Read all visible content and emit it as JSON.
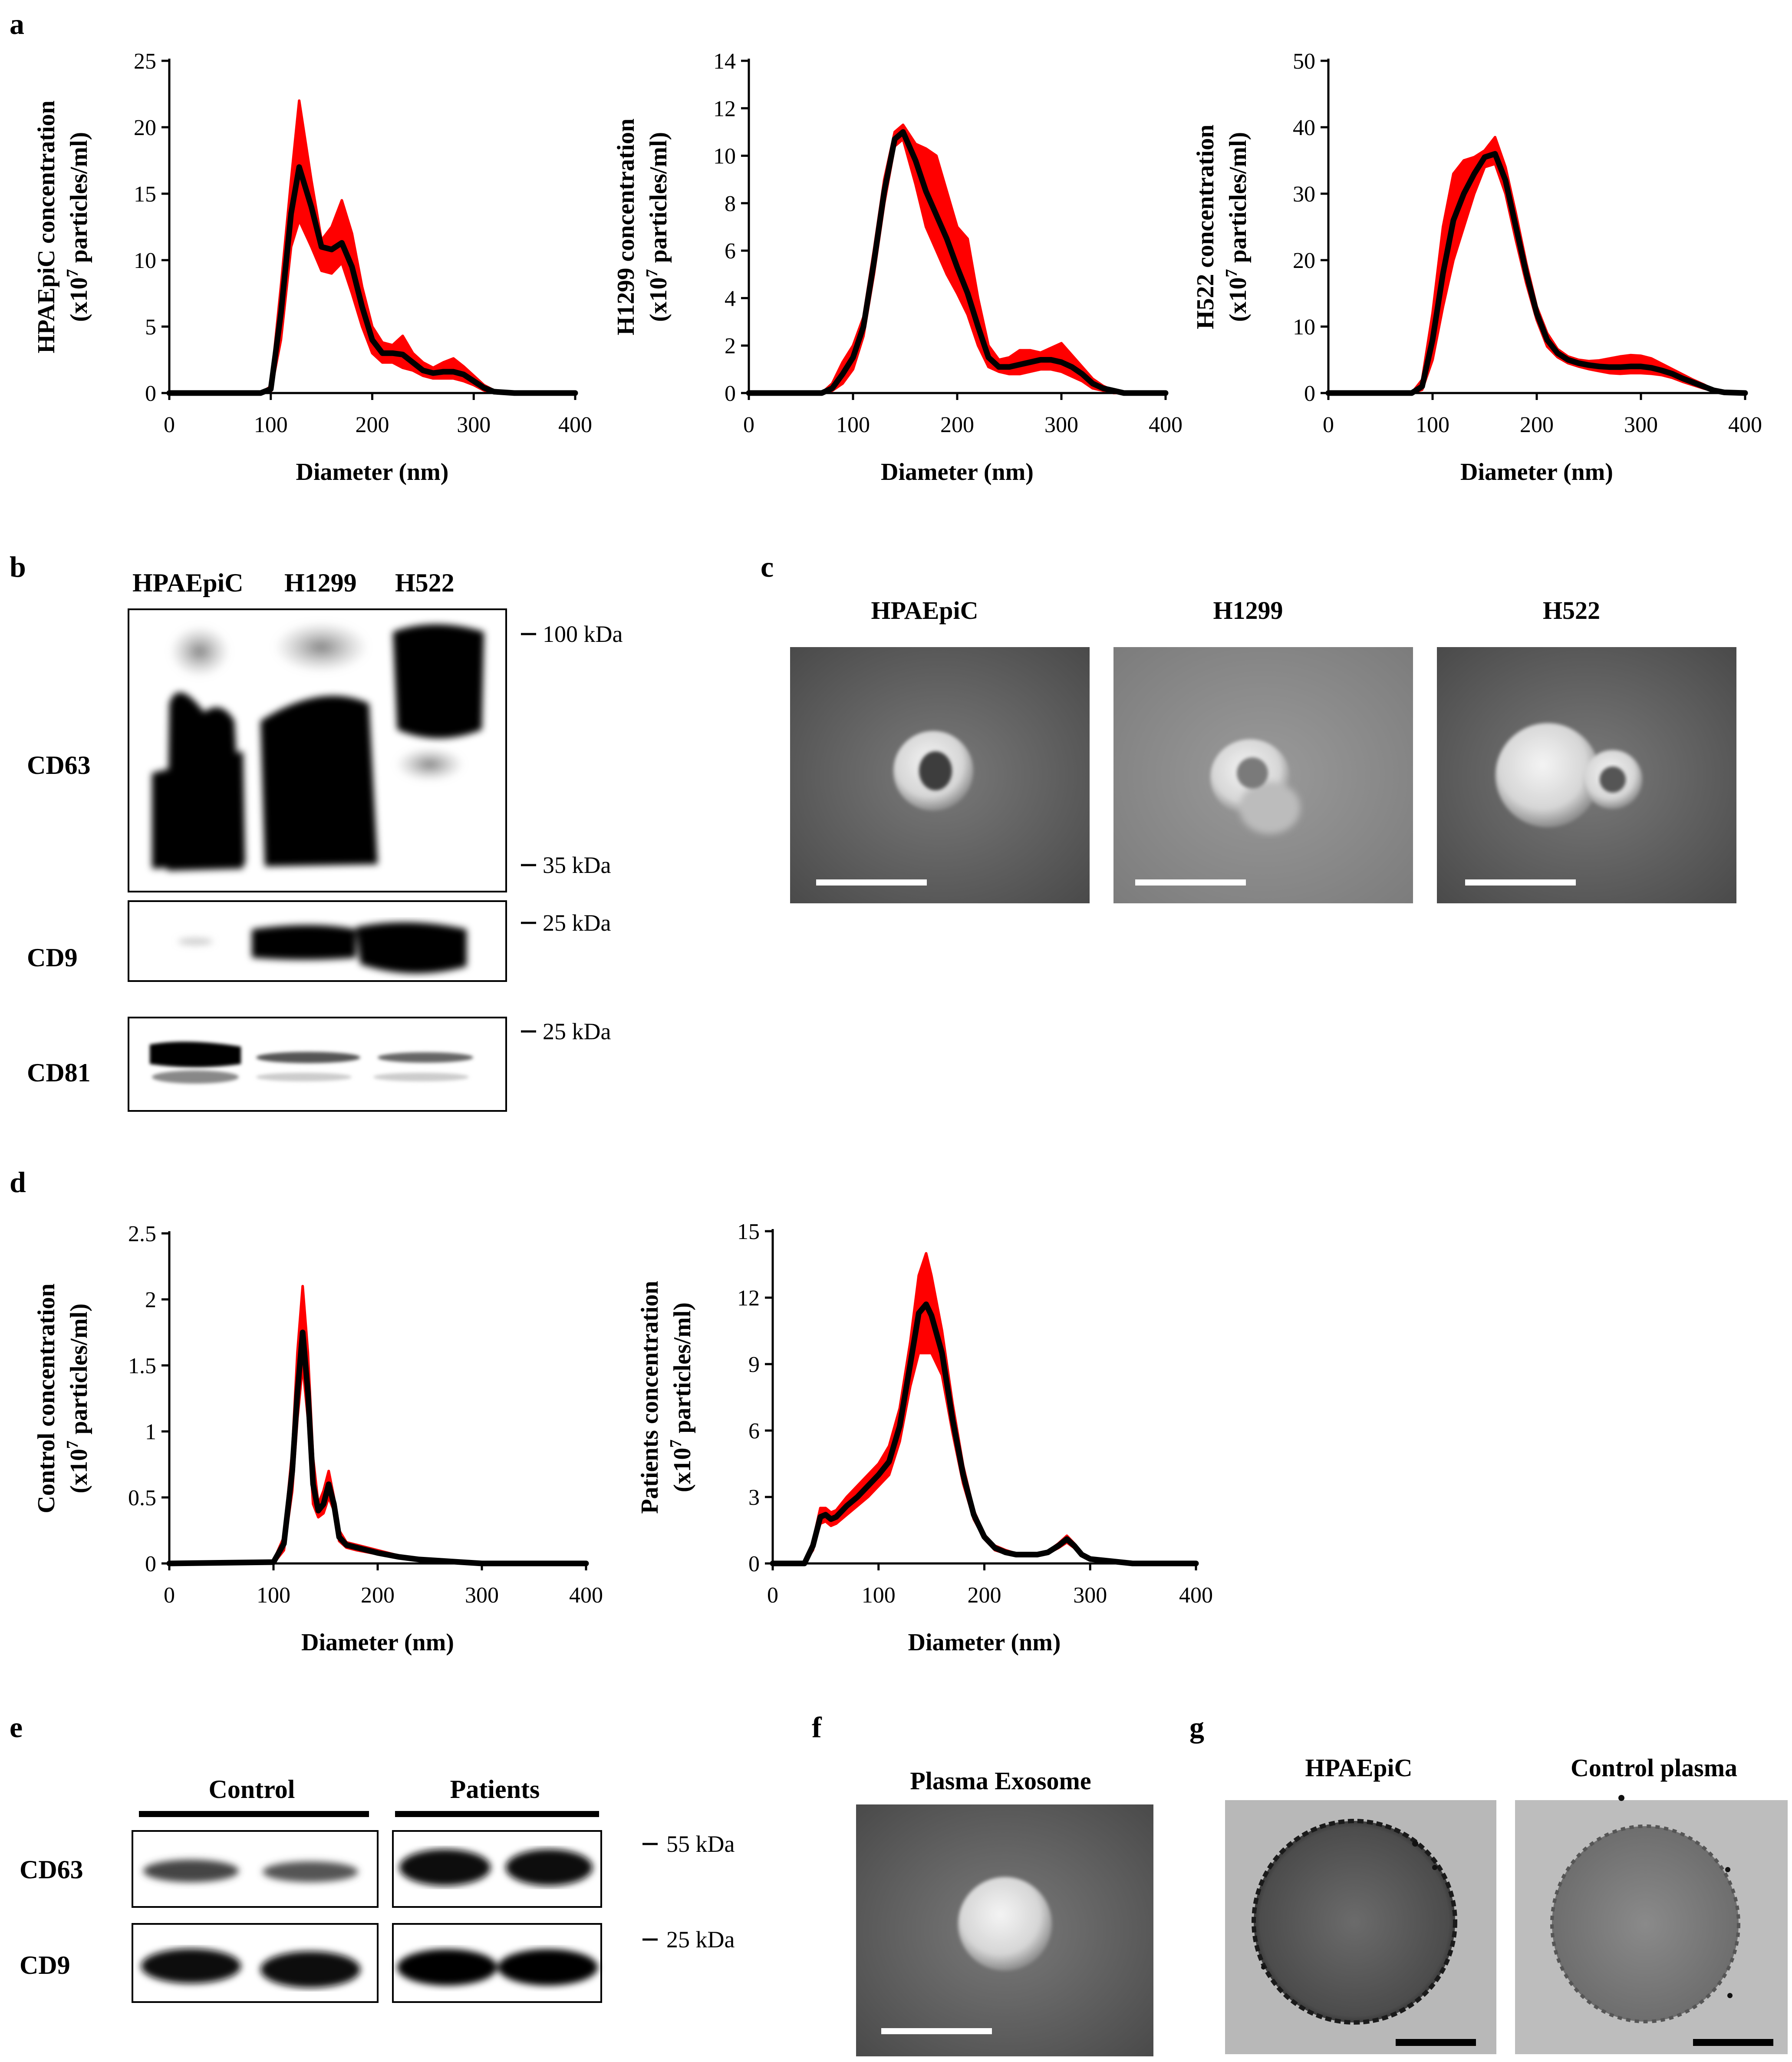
{
  "panels": {
    "a": "a",
    "b": "b",
    "c": "c",
    "d": "d",
    "e": "e",
    "f": "f",
    "g": "g"
  },
  "colors": {
    "band": "#ff0000",
    "line": "#000000"
  },
  "chart_data": [
    {
      "id": "a1",
      "type": "line",
      "panel": "a",
      "title": "",
      "ylabel": "HPAEpiC concentration",
      "ylabel2": "(x10",
      "ylabel_exp": "7",
      "ylabel3": " particles/ml)",
      "xlabel": "Diameter (nm)",
      "xlim": [
        0,
        400
      ],
      "ylim": [
        0,
        25
      ],
      "xticks": [
        "0",
        "100",
        "200",
        "300",
        "400"
      ],
      "yticks": [
        "0",
        "5",
        "10",
        "15",
        "20",
        "25"
      ],
      "x": [
        0,
        90,
        100,
        110,
        120,
        128,
        140,
        150,
        160,
        170,
        180,
        190,
        200,
        210,
        220,
        230,
        240,
        250,
        260,
        270,
        280,
        290,
        300,
        310,
        320,
        340,
        400
      ],
      "mean": [
        0,
        0,
        0.3,
        6.0,
        13.5,
        17.0,
        14.0,
        11.0,
        10.8,
        11.3,
        9.5,
        6.5,
        4.0,
        3.0,
        3.0,
        2.9,
        2.3,
        1.7,
        1.5,
        1.6,
        1.6,
        1.4,
        0.9,
        0.4,
        0.1,
        0,
        0
      ],
      "upper": [
        0,
        0,
        0.5,
        8.0,
        16.0,
        22.0,
        16.0,
        11.5,
        12.5,
        14.5,
        12.0,
        8.0,
        5.0,
        3.8,
        3.6,
        4.3,
        3.0,
        2.3,
        1.9,
        2.3,
        2.6,
        2.0,
        1.3,
        0.6,
        0.2,
        0,
        0
      ],
      "lower": [
        0,
        0,
        0.1,
        4.0,
        11.0,
        13.0,
        11.0,
        9.2,
        9.0,
        9.8,
        7.5,
        5.0,
        3.0,
        2.3,
        2.3,
        1.9,
        1.7,
        1.3,
        1.1,
        1.1,
        1.1,
        0.9,
        0.6,
        0.2,
        0,
        0,
        0
      ]
    },
    {
      "id": "a2",
      "type": "line",
      "panel": "a",
      "ylabel": "H1299 concentration",
      "ylabel2": "(x10",
      "ylabel_exp": "7",
      "ylabel3": " particles/ml)",
      "xlabel": "Diameter (nm)",
      "xlim": [
        0,
        400
      ],
      "ylim": [
        0,
        14
      ],
      "xticks": [
        "0",
        "100",
        "200",
        "300",
        "400"
      ],
      "yticks": [
        "0",
        "2",
        "4",
        "6",
        "8",
        "10",
        "12",
        "14"
      ],
      "x": [
        0,
        70,
        80,
        90,
        100,
        110,
        120,
        130,
        140,
        148,
        160,
        170,
        180,
        190,
        200,
        210,
        220,
        230,
        240,
        250,
        260,
        270,
        280,
        290,
        300,
        310,
        320,
        330,
        340,
        350,
        360,
        400
      ],
      "mean": [
        0,
        0,
        0.2,
        0.8,
        1.5,
        2.8,
        5.5,
        8.5,
        10.7,
        11.0,
        9.8,
        8.5,
        7.5,
        6.5,
        5.3,
        4.2,
        2.8,
        1.5,
        1.1,
        1.1,
        1.2,
        1.3,
        1.4,
        1.4,
        1.3,
        1.1,
        0.8,
        0.4,
        0.2,
        0.1,
        0,
        0
      ],
      "upper": [
        0,
        0,
        0.4,
        1.3,
        2.0,
        3.2,
        6.0,
        9.0,
        11.0,
        11.3,
        10.5,
        10.3,
        10.0,
        8.5,
        7.0,
        6.5,
        4.0,
        2.0,
        1.4,
        1.5,
        1.8,
        1.8,
        1.7,
        1.9,
        2.1,
        1.6,
        1.1,
        0.6,
        0.3,
        0.1,
        0,
        0
      ],
      "lower": [
        0,
        0,
        0.1,
        0.4,
        1.0,
        2.4,
        5.0,
        8.0,
        10.4,
        10.7,
        8.8,
        7.0,
        6.0,
        5.0,
        4.2,
        3.3,
        2.0,
        1.1,
        0.9,
        0.8,
        0.8,
        0.9,
        1.0,
        1.0,
        0.9,
        0.7,
        0.5,
        0.2,
        0.1,
        0,
        0,
        0
      ]
    },
    {
      "id": "a3",
      "type": "line",
      "panel": "a",
      "ylabel": "H522 concentration",
      "ylabel2": "(x10",
      "ylabel_exp": "7",
      "ylabel3": " particles/ml)",
      "xlabel": "Diameter (nm)",
      "xlim": [
        0,
        400
      ],
      "ylim": [
        0,
        50
      ],
      "xticks": [
        "0",
        "100",
        "200",
        "300",
        "400"
      ],
      "yticks": [
        "0",
        "10",
        "20",
        "30",
        "40",
        "50"
      ],
      "x": [
        0,
        80,
        90,
        100,
        110,
        120,
        130,
        140,
        150,
        160,
        170,
        180,
        190,
        200,
        210,
        220,
        230,
        240,
        250,
        260,
        270,
        280,
        290,
        300,
        310,
        320,
        330,
        340,
        350,
        360,
        370,
        380,
        400
      ],
      "mean": [
        0,
        0,
        1.0,
        8.0,
        18.0,
        26.0,
        30.0,
        33.0,
        35.5,
        36.0,
        32.0,
        25.0,
        18.0,
        12.0,
        8.0,
        6.0,
        5.0,
        4.5,
        4.2,
        4.0,
        3.9,
        3.9,
        4.0,
        4.0,
        3.8,
        3.4,
        2.9,
        2.2,
        1.6,
        1.0,
        0.4,
        0.1,
        0
      ],
      "upper": [
        0,
        0,
        2.0,
        12.0,
        25.0,
        33.0,
        35.0,
        35.5,
        36.5,
        38.5,
        34.0,
        27.0,
        19.5,
        13.0,
        9.0,
        6.6,
        5.5,
        5.0,
        4.8,
        4.9,
        5.2,
        5.5,
        5.7,
        5.6,
        5.2,
        4.4,
        3.6,
        2.8,
        2.0,
        1.3,
        0.5,
        0.2,
        0
      ],
      "lower": [
        0,
        0,
        0.5,
        5.0,
        13.0,
        20.0,
        25.0,
        30.0,
        34.0,
        34.5,
        30.0,
        23.0,
        16.5,
        11.0,
        7.0,
        5.4,
        4.5,
        4.0,
        3.6,
        3.3,
        3.0,
        2.9,
        3.0,
        3.0,
        2.9,
        2.7,
        2.3,
        1.7,
        1.2,
        0.7,
        0.3,
        0.1,
        0
      ]
    },
    {
      "id": "d1",
      "type": "line",
      "panel": "d",
      "ylabel": "Control concentration",
      "ylabel2": "(x10",
      "ylabel_exp": "7",
      "ylabel3": " particles/ml)",
      "xlabel": "Diameter (nm)",
      "xlim": [
        0,
        400
      ],
      "ylim": [
        0,
        2.5
      ],
      "xticks": [
        "0",
        "100",
        "200",
        "300",
        "400"
      ],
      "yticks": [
        "0",
        "0.5",
        "1",
        "1.5",
        "2",
        "2.5"
      ],
      "x": [
        0,
        100,
        110,
        118,
        123,
        128,
        133,
        138,
        143,
        148,
        153,
        158,
        163,
        170,
        180,
        200,
        220,
        240,
        260,
        280,
        300,
        400
      ],
      "mean": [
        0,
        0.01,
        0.15,
        0.7,
        1.3,
        1.75,
        1.3,
        0.6,
        0.4,
        0.45,
        0.6,
        0.45,
        0.2,
        0.14,
        0.12,
        0.08,
        0.05,
        0.03,
        0.02,
        0.01,
        0,
        0
      ],
      "upper": [
        0,
        0.02,
        0.2,
        0.85,
        1.6,
        2.1,
        1.6,
        0.8,
        0.45,
        0.55,
        0.7,
        0.5,
        0.25,
        0.16,
        0.14,
        0.1,
        0.06,
        0.04,
        0.02,
        0.01,
        0,
        0
      ],
      "lower": [
        0,
        0.0,
        0.1,
        0.55,
        1.1,
        1.5,
        1.1,
        0.45,
        0.35,
        0.38,
        0.5,
        0.4,
        0.17,
        0.12,
        0.1,
        0.07,
        0.04,
        0.02,
        0.01,
        0.0,
        0,
        0
      ]
    },
    {
      "id": "d2",
      "type": "line",
      "panel": "d",
      "ylabel": "Patients concentration",
      "ylabel2": "(x10",
      "ylabel_exp": "7",
      "ylabel3": " particles/ml)",
      "xlabel": "Diameter (nm)",
      "xlim": [
        0,
        400
      ],
      "ylim": [
        0,
        15
      ],
      "xticks": [
        "0",
        "100",
        "200",
        "300",
        "400"
      ],
      "yticks": [
        "0",
        "3",
        "6",
        "9",
        "12",
        "15"
      ],
      "x": [
        0,
        30,
        38,
        45,
        50,
        55,
        60,
        70,
        80,
        90,
        100,
        110,
        120,
        130,
        138,
        145,
        150,
        160,
        170,
        180,
        190,
        200,
        210,
        220,
        230,
        240,
        250,
        260,
        270,
        278,
        285,
        292,
        300,
        320,
        340,
        400
      ],
      "mean": [
        0,
        0,
        0.8,
        2.1,
        2.2,
        2.0,
        2.1,
        2.6,
        3.0,
        3.5,
        4.0,
        4.6,
        6.2,
        9.0,
        11.3,
        11.7,
        11.2,
        9.5,
        6.5,
        4.0,
        2.2,
        1.2,
        0.7,
        0.5,
        0.4,
        0.4,
        0.4,
        0.5,
        0.8,
        1.1,
        0.8,
        0.4,
        0.2,
        0.1,
        0,
        0
      ],
      "upper": [
        0,
        0,
        1.0,
        2.5,
        2.5,
        2.3,
        2.4,
        3.0,
        3.5,
        4.0,
        4.5,
        5.3,
        7.0,
        10.0,
        13.0,
        14.0,
        13.0,
        10.5,
        7.2,
        4.4,
        2.4,
        1.3,
        0.8,
        0.6,
        0.45,
        0.45,
        0.45,
        0.55,
        0.9,
        1.25,
        0.9,
        0.45,
        0.2,
        0.1,
        0,
        0
      ],
      "lower": [
        0,
        0,
        0.6,
        1.8,
        1.9,
        1.7,
        1.8,
        2.2,
        2.6,
        3.0,
        3.5,
        4.0,
        5.5,
        8.0,
        9.5,
        9.5,
        9.5,
        8.5,
        5.9,
        3.6,
        2.0,
        1.1,
        0.6,
        0.45,
        0.35,
        0.35,
        0.35,
        0.45,
        0.7,
        0.95,
        0.7,
        0.35,
        0.15,
        0.05,
        0,
        0
      ]
    }
  ],
  "blot_b": {
    "columns": [
      "HPAEpiC",
      "H1299",
      "H522"
    ],
    "rows": [
      "CD63",
      "CD9",
      "CD81"
    ],
    "markers": [
      "100 kDa",
      "35 kDa",
      "25 kDa",
      "25 kDa"
    ]
  },
  "tem_c": {
    "titles": [
      "HPAEpiC",
      "H1299",
      "H522"
    ]
  },
  "blot_e": {
    "groups": [
      "Control",
      "Patients"
    ],
    "rows": [
      "CD63",
      "CD9"
    ],
    "markers": [
      "55 kDa",
      "25 kDa"
    ]
  },
  "tem_f": {
    "title": "Plasma Exosome"
  },
  "tem_g": {
    "titles": [
      "HPAEpiC",
      "Control plasma"
    ]
  }
}
